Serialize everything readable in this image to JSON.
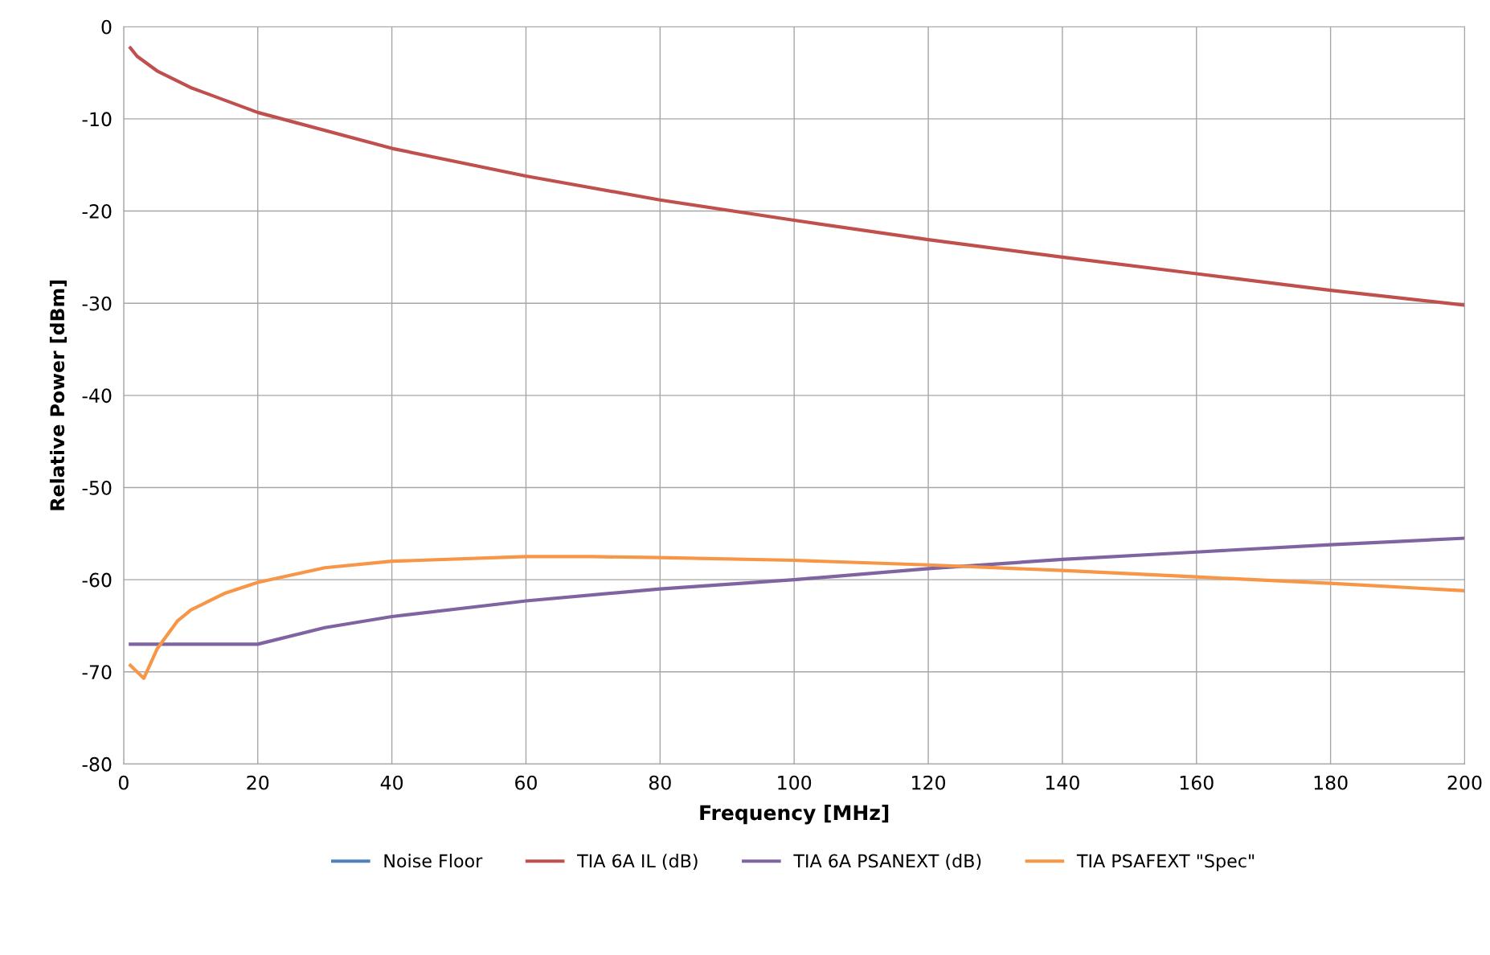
{
  "chart_data": {
    "type": "line",
    "xlabel": "Frequency [MHz]",
    "ylabel": "Relative Power [dBm]",
    "xlim": [
      0,
      200
    ],
    "xticks": [
      0,
      20,
      40,
      60,
      80,
      100,
      120,
      140,
      160,
      180,
      200
    ],
    "ylim": [
      -80,
      0
    ],
    "yticks": [
      -80,
      -70,
      -60,
      -50,
      -40,
      -30,
      -20,
      -10,
      0
    ],
    "grid": true,
    "legend": "bottom",
    "marker": "none",
    "line_style": "solid",
    "series": [
      {
        "name": "Noise Floor",
        "color": "#4f81bd"
      },
      {
        "name": "TIA 6A IL (dB)",
        "color": "#c0504d",
        "x": [
          1,
          2,
          5,
          10,
          20,
          40,
          60,
          80,
          100,
          120,
          140,
          160,
          180,
          200
        ],
        "values": [
          -2.3,
          -3.2,
          -4.8,
          -6.6,
          -9.3,
          -13.2,
          -16.2,
          -18.8,
          -21.0,
          -23.1,
          -25.0,
          -26.8,
          -28.6,
          -30.2
        ]
      },
      {
        "name": "TIA 6A PSANEXT (dB)",
        "color": "#8064a2",
        "x": [
          1,
          20,
          30,
          40,
          60,
          80,
          100,
          120,
          140,
          160,
          180,
          200
        ],
        "values": [
          -67,
          -67,
          -65.2,
          -64,
          -62.3,
          -61,
          -60,
          -58.8,
          -57.8,
          -57,
          -56.2,
          -55.5
        ]
      },
      {
        "name": "TIA PSAFEXT \"Spec\"",
        "color": "#f79646",
        "x": [
          1,
          3,
          5,
          8,
          10,
          15,
          20,
          30,
          40,
          60,
          70,
          80,
          100,
          120,
          140,
          160,
          180,
          200
        ],
        "values": [
          -69.3,
          -70.7,
          -67.5,
          -64.5,
          -63.3,
          -61.5,
          -60.3,
          -58.7,
          -58,
          -57.5,
          -57.5,
          -57.6,
          -57.9,
          -58.4,
          -59,
          -59.7,
          -60.4,
          -61.2
        ]
      }
    ]
  }
}
